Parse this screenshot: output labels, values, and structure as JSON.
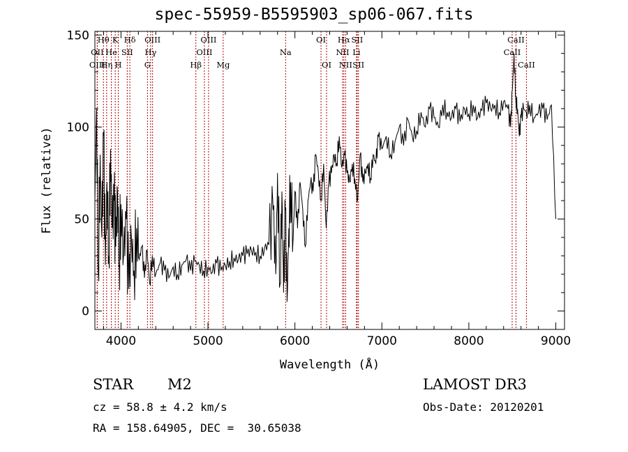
{
  "title": "spec-55959-B5595903_sp06-067.fits",
  "info": {
    "object_class": "STAR",
    "subclass": "M2",
    "survey": "LAMOST DR3",
    "cz": "cz = 58.8 ± 4.2 km/s",
    "obs_date": "Obs-Date: 20120201",
    "coords": "RA = 158.64905, DEC =  30.65038"
  },
  "colors": {
    "spectrum": "#000000",
    "lines": "#b00000",
    "axes": "#000000"
  },
  "chart_data": {
    "type": "line",
    "title": "spec-55959-B5595903_sp06-067.fits",
    "xlabel": "Wavelength (Å)",
    "ylabel": "Flux (relative)",
    "xlim": [
      3700,
      9100
    ],
    "ylim": [
      -10,
      152
    ],
    "xticks": [
      4000,
      5000,
      6000,
      7000,
      8000,
      9000
    ],
    "yticks": [
      0,
      50,
      100,
      150
    ],
    "grid": false,
    "spectral_lines": [
      {
        "label": "Hθ",
        "wave": 3798,
        "row": 0
      },
      {
        "label": "OII",
        "wave": 3727,
        "row": 1
      },
      {
        "label": "OIII",
        "wave": 3727,
        "row": 2
      },
      {
        "label": "K",
        "wave": 3934,
        "row": 0
      },
      {
        "label": "He",
        "wave": 3889,
        "row": 1
      },
      {
        "label": "Hη",
        "wave": 3835,
        "row": 2
      },
      {
        "label": "Hδ",
        "wave": 4102,
        "row": 0
      },
      {
        "label": "SII",
        "wave": 4072,
        "row": 1
      },
      {
        "label": "H",
        "wave": 3969,
        "row": 2
      },
      {
        "label": "OIII",
        "wave": 4363,
        "row": 0
      },
      {
        "label": "Hγ",
        "wave": 4341,
        "row": 1
      },
      {
        "label": "G",
        "wave": 4305,
        "row": 2
      },
      {
        "label": "OIII",
        "wave": 5007,
        "row": 0
      },
      {
        "label": "OIII",
        "wave": 4959,
        "row": 1
      },
      {
        "label": "Hβ",
        "wave": 4861,
        "row": 2
      },
      {
        "label": "Mg",
        "wave": 5175,
        "row": 2
      },
      {
        "label": "Na",
        "wave": 5893,
        "row": 1
      },
      {
        "label": "OI",
        "wave": 6300,
        "row": 0
      },
      {
        "label": "OI",
        "wave": 6364,
        "row": 2
      },
      {
        "label": "Hα",
        "wave": 6563,
        "row": 0
      },
      {
        "label": "SII",
        "wave": 6716,
        "row": 0
      },
      {
        "label": "NII",
        "wave": 6548,
        "row": 1
      },
      {
        "label": "Li",
        "wave": 6708,
        "row": 1
      },
      {
        "label": "NII",
        "wave": 6583,
        "row": 2
      },
      {
        "label": "SII",
        "wave": 6731,
        "row": 2
      },
      {
        "label": "CaII",
        "wave": 8542,
        "row": 0
      },
      {
        "label": "CaII",
        "wave": 8498,
        "row": 1
      },
      {
        "label": "CaII",
        "wave": 8662,
        "row": 2
      }
    ],
    "series": [
      {
        "x": [
          3700,
          3720,
          3740,
          3760,
          3780,
          3800,
          3820,
          3840,
          3860,
          3880,
          3900,
          3920,
          3940,
          3960,
          3980,
          4000,
          4030,
          4060,
          4090,
          4120,
          4150,
          4180,
          4210,
          4240,
          4270,
          4300,
          4330,
          4360,
          4400,
          4450,
          4500,
          4550,
          4600,
          4650,
          4700,
          4750,
          4800,
          4850,
          4900,
          4950,
          5000,
          5050,
          5100,
          5150,
          5200,
          5250,
          5300,
          5350,
          5400,
          5450,
          5500,
          5550,
          5600,
          5650,
          5700,
          5750,
          5780,
          5800,
          5830,
          5850,
          5870,
          5890,
          5910,
          5930,
          5950,
          5980,
          6000,
          6030,
          6060,
          6090,
          6120,
          6150,
          6180,
          6210,
          6240,
          6270,
          6300,
          6330,
          6360,
          6390,
          6420,
          6450,
          6480,
          6510,
          6540,
          6570,
          6600,
          6630,
          6660,
          6690,
          6720,
          6750,
          6780,
          6810,
          6840,
          6870,
          6900,
          6930,
          6960,
          7000,
          7050,
          7100,
          7150,
          7200,
          7250,
          7300,
          7350,
          7400,
          7450,
          7500,
          7550,
          7600,
          7650,
          7700,
          7750,
          7800,
          7850,
          7900,
          7950,
          8000,
          8050,
          8100,
          8150,
          8200,
          8250,
          8300,
          8350,
          8400,
          8450,
          8480,
          8500,
          8520,
          8540,
          8560,
          8580,
          8600,
          8630,
          8660,
          8700,
          8750,
          8800,
          8850,
          8900,
          8950,
          9000
        ],
        "y": [
          60,
          110,
          20,
          85,
          40,
          95,
          25,
          70,
          30,
          88,
          45,
          60,
          35,
          65,
          25,
          58,
          30,
          50,
          12,
          40,
          22,
          45,
          28,
          35,
          18,
          33,
          15,
          30,
          20,
          26,
          22,
          18,
          24,
          20,
          25,
          28,
          22,
          27,
          25,
          22,
          24,
          21,
          26,
          22,
          25,
          27,
          29,
          28,
          30,
          31,
          33,
          32,
          30,
          34,
          36,
          55,
          20,
          75,
          15,
          65,
          10,
          55,
          5,
          45,
          70,
          40,
          65,
          45,
          70,
          55,
          35,
          60,
          70,
          65,
          85,
          75,
          60,
          80,
          45,
          70,
          75,
          85,
          80,
          95,
          78,
          85,
          75,
          70,
          80,
          72,
          60,
          85,
          70,
          75,
          80,
          72,
          85,
          80,
          95,
          88,
          95,
          85,
          92,
          100,
          90,
          104,
          95,
          98,
          108,
          100,
          110,
          105,
          100,
          112,
          108,
          105,
          110,
          103,
          110,
          107,
          112,
          105,
          109,
          113,
          110,
          112,
          108,
          114,
          110,
          100,
          120,
          140,
          115,
          110,
          95,
          105,
          110,
          108,
          112,
          105,
          108,
          110,
          104,
          112,
          50
        ]
      }
    ]
  }
}
